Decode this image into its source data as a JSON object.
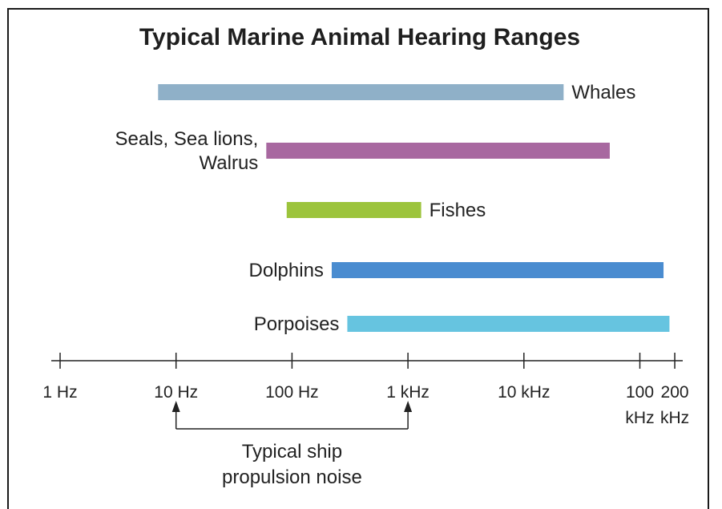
{
  "chart_data": {
    "type": "bar",
    "orientation": "horizontal-range",
    "title": "Typical Marine Animal Hearing Ranges",
    "xscale": "log",
    "xlim_hz": [
      1,
      200000
    ],
    "x_ticks": [
      {
        "value": 1,
        "label": [
          "1 Hz"
        ]
      },
      {
        "value": 10,
        "label": [
          "10 Hz"
        ]
      },
      {
        "value": 100,
        "label": [
          "100 Hz"
        ]
      },
      {
        "value": 1000,
        "label": [
          "1 kHz"
        ]
      },
      {
        "value": 10000,
        "label": [
          "10 kHz"
        ]
      },
      {
        "value": 100000,
        "label": [
          "100",
          "kHz"
        ]
      },
      {
        "value": 200000,
        "label": [
          "200",
          "kHz"
        ]
      }
    ],
    "series": [
      {
        "name": "Whales",
        "label_lines": [
          "Whales"
        ],
        "label_side": "right",
        "low_hz": 7,
        "high_hz": 22000,
        "color": "#8fb0c8"
      },
      {
        "name": "Seals, Sea lions, Walrus",
        "label_lines": [
          "Seals, Sea lions,",
          "Walrus"
        ],
        "label_side": "left",
        "low_hz": 60,
        "high_hz": 55000,
        "color": "#a868a0"
      },
      {
        "name": "Fishes",
        "label_lines": [
          "Fishes"
        ],
        "label_side": "right",
        "low_hz": 90,
        "high_hz": 1300,
        "color": "#9cc43c"
      },
      {
        "name": "Dolphins",
        "label_lines": [
          "Dolphins"
        ],
        "label_side": "left",
        "low_hz": 220,
        "high_hz": 160000,
        "color": "#4a8cd0"
      },
      {
        "name": "Porpoises",
        "label_lines": [
          "Porpoises"
        ],
        "label_side": "left",
        "low_hz": 300,
        "high_hz": 180000,
        "color": "#66c4e0"
      }
    ],
    "annotation": {
      "text_lines": [
        "Typical ship",
        "propulsion noise"
      ],
      "from_hz": 10,
      "to_hz": 1000
    }
  }
}
